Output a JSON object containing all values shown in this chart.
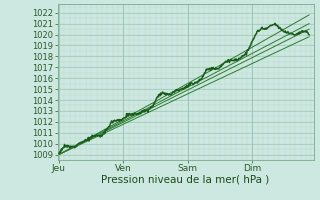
{
  "background_color": "#cde8e0",
  "grid_color_major": "#9dc8b8",
  "grid_color_minor": "#b8d8cc",
  "line_color_main": "#1a5c1a",
  "line_color_thin": "#2d7a30",
  "xlabel": "Pression niveau de la mer( hPa )",
  "xlabel_fontsize": 7.5,
  "tick_fontsize": 6.0,
  "ylim": [
    1008.5,
    1022.8
  ],
  "yticks": [
    1009,
    1010,
    1011,
    1012,
    1013,
    1014,
    1015,
    1016,
    1017,
    1018,
    1019,
    1020,
    1021,
    1022
  ],
  "xlim": [
    -0.02,
    3.95
  ],
  "day_labels": [
    "Jeu",
    "Ven",
    "Sam",
    "Dim"
  ],
  "day_positions": [
    0,
    1,
    2,
    3
  ]
}
